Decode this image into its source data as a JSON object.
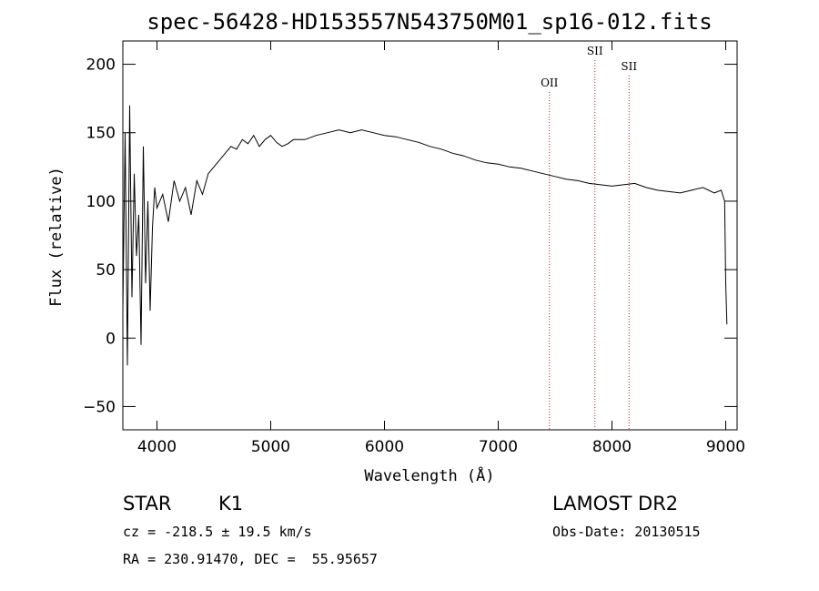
{
  "chart_data": {
    "type": "line",
    "title": "spec-56428-HD153557N543750M01_sp16-012.fits",
    "xlabel": "Wavelength (Å)",
    "ylabel": "Flux (relative)",
    "xlim": [
      3700,
      9100
    ],
    "ylim": [
      -67,
      217
    ],
    "x_ticks": [
      4000,
      5000,
      6000,
      7000,
      8000,
      9000
    ],
    "y_ticks": [
      -50,
      0,
      50,
      100,
      150,
      200
    ],
    "grid": false,
    "series": [
      {
        "x": [
          3700,
          3720,
          3740,
          3760,
          3780,
          3800,
          3820,
          3840,
          3860,
          3880,
          3900,
          3920,
          3940,
          3960,
          3980,
          4000,
          4050,
          4100,
          4150,
          4200,
          4250,
          4300,
          4350,
          4400,
          4450,
          4500,
          4550,
          4600,
          4650,
          4700,
          4750,
          4800,
          4850,
          4900,
          4950,
          5000,
          5050,
          5100,
          5150,
          5200,
          5300,
          5400,
          5500,
          5600,
          5700,
          5800,
          5900,
          6000,
          6100,
          6200,
          6300,
          6400,
          6500,
          6600,
          6700,
          6800,
          6900,
          7000,
          7100,
          7200,
          7300,
          7400,
          7500,
          7600,
          7700,
          7800,
          7900,
          8000,
          8100,
          8200,
          8300,
          8400,
          8500,
          8600,
          8700,
          8800,
          8900,
          8960,
          8990,
          9000,
          9010
        ],
        "y": [
          20,
          150,
          -20,
          170,
          30,
          120,
          60,
          90,
          -5,
          140,
          40,
          100,
          20,
          80,
          110,
          95,
          105,
          85,
          115,
          100,
          110,
          90,
          115,
          105,
          120,
          125,
          130,
          135,
          140,
          138,
          145,
          142,
          148,
          140,
          145,
          148,
          143,
          140,
          142,
          145,
          145,
          148,
          150,
          152,
          150,
          152,
          150,
          148,
          147,
          145,
          143,
          140,
          138,
          135,
          133,
          130,
          128,
          127,
          125,
          124,
          122,
          120,
          118,
          116,
          115,
          113,
          112,
          111,
          112,
          113,
          110,
          108,
          107,
          106,
          108,
          110,
          106,
          108,
          100,
          40,
          10
        ]
      }
    ],
    "annotations": [
      {
        "label": "OII",
        "x": 7450
      },
      {
        "label": "SII",
        "x": 7850
      },
      {
        "label": "SII",
        "x": 8150
      }
    ]
  },
  "info": {
    "object": "STAR",
    "subclass": "K1",
    "cz": "cz = -218.5 ± 19.5 km/s",
    "coords": "RA = 230.91470, DEC =  55.95657",
    "survey": "LAMOST DR2",
    "obs_date": "Obs-Date: 20130515"
  }
}
